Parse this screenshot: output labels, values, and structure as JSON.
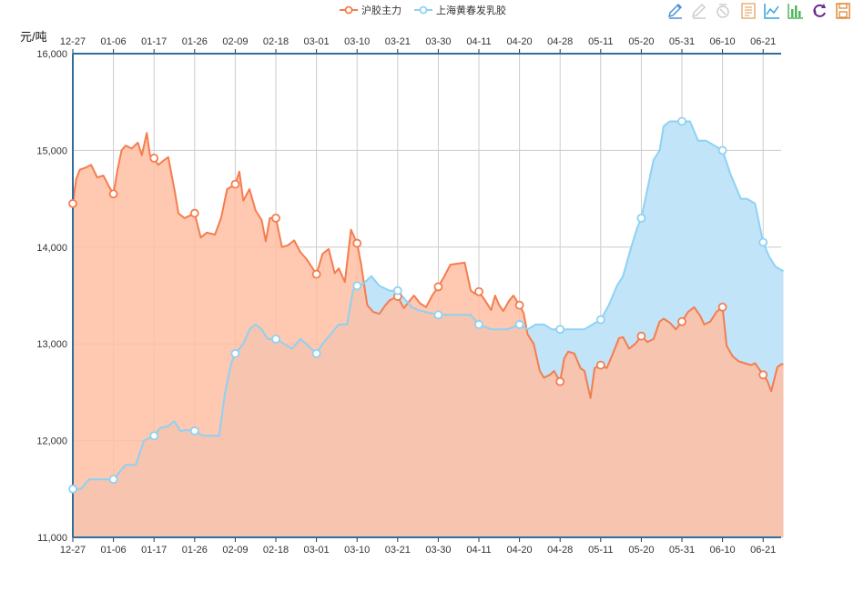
{
  "chart_data": {
    "type": "area",
    "ylabel": "元/吨",
    "ylim": [
      11000,
      16000
    ],
    "yticks": [
      11000,
      12000,
      13000,
      14000,
      15000,
      16000
    ],
    "ytick_labels": [
      "11,000",
      "12,000",
      "13,000",
      "14,000",
      "15,000",
      "16,000"
    ],
    "grid": true,
    "legend": "top-center",
    "x_ticks": [
      "12-27",
      "01-06",
      "01-17",
      "01-26",
      "02-09",
      "02-18",
      "03-01",
      "03-10",
      "03-21",
      "03-30",
      "04-11",
      "04-20",
      "04-28",
      "05-11",
      "05-20",
      "05-31",
      "06-10",
      "06-21"
    ],
    "series": [
      {
        "name": "沪胶主力",
        "color": "#f47d4f",
        "fill": "#ffbea2",
        "values": [
          [
            0,
            14450
          ],
          [
            0.08,
            14700
          ],
          [
            0.17,
            14800
          ],
          [
            0.3,
            14820
          ],
          [
            0.45,
            14850
          ],
          [
            0.6,
            14720
          ],
          [
            0.75,
            14740
          ],
          [
            0.9,
            14620
          ],
          [
            1,
            14550
          ],
          [
            1.1,
            14800
          ],
          [
            1.2,
            15000
          ],
          [
            1.3,
            15050
          ],
          [
            1.45,
            15020
          ],
          [
            1.6,
            15080
          ],
          [
            1.7,
            14950
          ],
          [
            1.82,
            15180
          ],
          [
            1.9,
            14950
          ],
          [
            2,
            14920
          ],
          [
            2.1,
            14850
          ],
          [
            2.25,
            14900
          ],
          [
            2.35,
            14930
          ],
          [
            2.5,
            14600
          ],
          [
            2.6,
            14350
          ],
          [
            2.75,
            14300
          ],
          [
            2.85,
            14320
          ],
          [
            3,
            14350
          ],
          [
            3.15,
            14100
          ],
          [
            3.3,
            14150
          ],
          [
            3.5,
            14130
          ],
          [
            3.65,
            14300
          ],
          [
            3.8,
            14600
          ],
          [
            4,
            14650
          ],
          [
            4.1,
            14780
          ],
          [
            4.2,
            14480
          ],
          [
            4.35,
            14600
          ],
          [
            4.5,
            14380
          ],
          [
            4.65,
            14280
          ],
          [
            4.75,
            14060
          ],
          [
            4.85,
            14300
          ],
          [
            5,
            14300
          ],
          [
            5.15,
            14000
          ],
          [
            5.3,
            14020
          ],
          [
            5.45,
            14070
          ],
          [
            5.6,
            13950
          ],
          [
            5.75,
            13880
          ],
          [
            6,
            13720
          ],
          [
            6.15,
            13930
          ],
          [
            6.3,
            13980
          ],
          [
            6.45,
            13730
          ],
          [
            6.55,
            13780
          ],
          [
            6.7,
            13640
          ],
          [
            6.85,
            14180
          ],
          [
            7,
            14040
          ],
          [
            7.1,
            13820
          ],
          [
            7.25,
            13400
          ],
          [
            7.4,
            13330
          ],
          [
            7.55,
            13310
          ],
          [
            7.7,
            13400
          ],
          [
            7.8,
            13450
          ],
          [
            8,
            13490
          ],
          [
            8.15,
            13370
          ],
          [
            8.25,
            13420
          ],
          [
            8.4,
            13500
          ],
          [
            8.55,
            13420
          ],
          [
            8.7,
            13380
          ],
          [
            8.85,
            13500
          ],
          [
            9,
            13590
          ],
          [
            9.15,
            13700
          ],
          [
            9.3,
            13820
          ],
          [
            9.5,
            13830
          ],
          [
            9.65,
            13840
          ],
          [
            9.8,
            13550
          ],
          [
            9.9,
            13520
          ],
          [
            10,
            13540
          ],
          [
            10.15,
            13450
          ],
          [
            10.3,
            13350
          ],
          [
            10.4,
            13500
          ],
          [
            10.5,
            13400
          ],
          [
            10.6,
            13340
          ],
          [
            10.75,
            13450
          ],
          [
            10.85,
            13500
          ],
          [
            11,
            13400
          ],
          [
            11.1,
            13320
          ],
          [
            11.2,
            13100
          ],
          [
            11.35,
            13000
          ],
          [
            11.5,
            12720
          ],
          [
            11.6,
            12650
          ],
          [
            11.75,
            12680
          ],
          [
            11.85,
            12720
          ],
          [
            12,
            12610
          ],
          [
            12.1,
            12850
          ],
          [
            12.2,
            12920
          ],
          [
            12.35,
            12900
          ],
          [
            12.5,
            12750
          ],
          [
            12.6,
            12720
          ],
          [
            12.75,
            12440
          ],
          [
            12.85,
            12750
          ],
          [
            13,
            12780
          ],
          [
            13.15,
            12750
          ],
          [
            13.3,
            12900
          ],
          [
            13.45,
            13060
          ],
          [
            13.55,
            13070
          ],
          [
            13.7,
            12950
          ],
          [
            13.85,
            13000
          ],
          [
            14,
            13080
          ],
          [
            14.15,
            13020
          ],
          [
            14.3,
            13050
          ],
          [
            14.45,
            13230
          ],
          [
            14.55,
            13260
          ],
          [
            14.7,
            13220
          ],
          [
            14.85,
            13150
          ],
          [
            15,
            13230
          ],
          [
            15.15,
            13330
          ],
          [
            15.3,
            13380
          ],
          [
            15.45,
            13290
          ],
          [
            15.55,
            13200
          ],
          [
            15.7,
            13230
          ],
          [
            15.85,
            13330
          ],
          [
            16,
            13380
          ],
          [
            16.1,
            12980
          ],
          [
            16.25,
            12870
          ],
          [
            16.4,
            12820
          ],
          [
            16.55,
            12800
          ],
          [
            16.7,
            12780
          ],
          [
            16.8,
            12800
          ],
          [
            17,
            12680
          ],
          [
            17.1,
            12620
          ],
          [
            17.2,
            12510
          ],
          [
            17.35,
            12760
          ],
          [
            17.45,
            12790
          ],
          [
            17.5,
            12790
          ]
        ]
      },
      {
        "name": "上海黄春发乳胶",
        "color": "#8dd2f4",
        "fill": "#c1e4f8",
        "values": [
          [
            0,
            11500
          ],
          [
            0.2,
            11500
          ],
          [
            0.4,
            11600
          ],
          [
            0.7,
            11600
          ],
          [
            1,
            11600
          ],
          [
            1.3,
            11750
          ],
          [
            1.55,
            11750
          ],
          [
            1.75,
            12000
          ],
          [
            2,
            12050
          ],
          [
            2.15,
            12130
          ],
          [
            2.35,
            12150
          ],
          [
            2.5,
            12200
          ],
          [
            2.65,
            12100
          ],
          [
            2.8,
            12110
          ],
          [
            3,
            12100
          ],
          [
            3.2,
            12050
          ],
          [
            3.6,
            12050
          ],
          [
            3.75,
            12500
          ],
          [
            3.9,
            12800
          ],
          [
            4,
            12900
          ],
          [
            4.2,
            13000
          ],
          [
            4.35,
            13150
          ],
          [
            4.5,
            13200
          ],
          [
            4.65,
            13150
          ],
          [
            4.8,
            13050
          ],
          [
            5,
            13050
          ],
          [
            5.2,
            13000
          ],
          [
            5.4,
            12950
          ],
          [
            5.6,
            13050
          ],
          [
            5.75,
            13000
          ],
          [
            6,
            12900
          ],
          [
            6.15,
            13000
          ],
          [
            6.35,
            13100
          ],
          [
            6.55,
            13200
          ],
          [
            6.75,
            13200
          ],
          [
            6.9,
            13550
          ],
          [
            7,
            13600
          ],
          [
            7.15,
            13620
          ],
          [
            7.35,
            13700
          ],
          [
            7.55,
            13600
          ],
          [
            7.8,
            13550
          ],
          [
            8,
            13550
          ],
          [
            8.2,
            13450
          ],
          [
            8.35,
            13380
          ],
          [
            8.5,
            13350
          ],
          [
            8.7,
            13330
          ],
          [
            9,
            13300
          ],
          [
            9.2,
            13300
          ],
          [
            9.6,
            13300
          ],
          [
            9.8,
            13300
          ],
          [
            10,
            13200
          ],
          [
            10.3,
            13150
          ],
          [
            10.7,
            13150
          ],
          [
            11,
            13200
          ],
          [
            11.2,
            13150
          ],
          [
            11.4,
            13200
          ],
          [
            11.6,
            13200
          ],
          [
            11.8,
            13150
          ],
          [
            12,
            13150
          ],
          [
            12.3,
            13150
          ],
          [
            12.6,
            13150
          ],
          [
            12.8,
            13200
          ],
          [
            13,
            13250
          ],
          [
            13.2,
            13400
          ],
          [
            13.4,
            13600
          ],
          [
            13.55,
            13700
          ],
          [
            13.75,
            14000
          ],
          [
            13.9,
            14200
          ],
          [
            14,
            14300
          ],
          [
            14.15,
            14600
          ],
          [
            14.3,
            14900
          ],
          [
            14.45,
            15000
          ],
          [
            14.55,
            15250
          ],
          [
            14.7,
            15300
          ],
          [
            14.85,
            15300
          ],
          [
            15,
            15300
          ],
          [
            15.2,
            15300
          ],
          [
            15.4,
            15100
          ],
          [
            15.6,
            15100
          ],
          [
            15.8,
            15050
          ],
          [
            16,
            15000
          ],
          [
            16.2,
            14750
          ],
          [
            16.45,
            14500
          ],
          [
            16.6,
            14500
          ],
          [
            16.8,
            14450
          ],
          [
            17,
            14050
          ],
          [
            17.15,
            13900
          ],
          [
            17.3,
            13800
          ],
          [
            17.5,
            13750
          ]
        ]
      }
    ],
    "markers_at": [
      0,
      1,
      2,
      3,
      4,
      5,
      6,
      7,
      8,
      9,
      10,
      11,
      12,
      13,
      14,
      15,
      16,
      17
    ]
  },
  "toolbar": {
    "items": [
      "mark-icon",
      "remove-mark-icon",
      "clear-mark-icon",
      "data-view-icon",
      "line-chart-icon",
      "bar-chart-icon",
      "restore-icon",
      "save-image-icon"
    ],
    "colors": {
      "mark": "#4a90d9",
      "disabled": "#cccccc",
      "data": "#e5b07a",
      "line": "#2fa4d8",
      "bar": "#52b45b",
      "restore": "#6a2c8f",
      "save": "#e08a3c"
    }
  }
}
